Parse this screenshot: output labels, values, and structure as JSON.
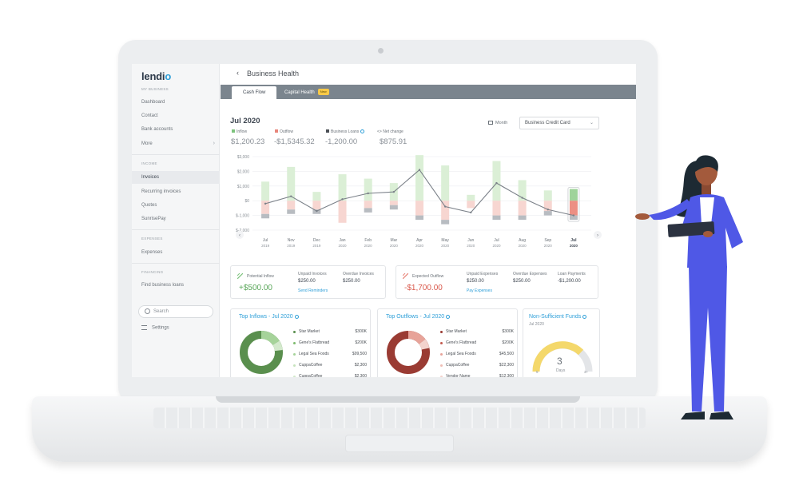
{
  "brand": {
    "logo_text": "lendi",
    "logo_dot": "o"
  },
  "sidebar": {
    "sections": [
      "MY BUSINESS",
      "INCOME",
      "EXPENSES",
      "FINANCING"
    ],
    "items": [
      {
        "label": "Dashboard"
      },
      {
        "label": "Contact"
      },
      {
        "label": "Bank accounts"
      },
      {
        "label": "More"
      },
      {
        "label": "Invoices"
      },
      {
        "label": "Recurring invoices"
      },
      {
        "label": "Quotes"
      },
      {
        "label": "SunrisePay"
      },
      {
        "label": "Expenses"
      },
      {
        "label": "Find business loans"
      }
    ],
    "search_label": "Search",
    "settings_label": "Settings"
  },
  "header": {
    "back_glyph": "‹",
    "title": "Business Health"
  },
  "tabs": [
    {
      "label": "Cash Flow"
    },
    {
      "label": "Capital Health",
      "badge": "New"
    }
  ],
  "summary": {
    "period": "Jul 2020",
    "legend": [
      {
        "label": "Inflow",
        "value": "$1,200.23",
        "color": "#7dc37d"
      },
      {
        "label": "Outflow",
        "value": "-$1,5345.32",
        "color": "#e8857a"
      },
      {
        "label": "Business Loans",
        "value": "-1,200.00",
        "color": "#4a4f55"
      },
      {
        "label": "Net change",
        "value": "$875.91",
        "glyph": "<>"
      }
    ],
    "month_toggle": "Month",
    "account_select": "Business Credit Card"
  },
  "chart_data": {
    "type": "bar",
    "y_ticks": [
      "$3,000",
      "$2,000",
      "$1,000",
      "$0",
      "$-1,000",
      "$-2,000"
    ],
    "ylim": [
      -2000,
      3000
    ],
    "categories": [
      "Jul 2019",
      "Nov 2019",
      "Dec 2019",
      "Jan 2020",
      "Feb 2020",
      "Mar 2020",
      "Apr 2020",
      "May 2020",
      "Jun 2020",
      "Jul 2020",
      "Aug 2020",
      "Sep 2020",
      "Jul 2020"
    ],
    "x_months": [
      "Jul",
      "Nov",
      "Dec",
      "Jan",
      "Feb",
      "Mar",
      "Apr",
      "May",
      "Jun",
      "Jul",
      "Aug",
      "Sep",
      "Jul"
    ],
    "x_years": [
      "2019",
      "2019",
      "2019",
      "2020",
      "2020",
      "2020",
      "2020",
      "2020",
      "2020",
      "2020",
      "2020",
      "2020",
      "2020"
    ],
    "series": [
      {
        "name": "Inflow",
        "values": [
          1300,
          2300,
          600,
          1800,
          1500,
          1200,
          3100,
          2400,
          400,
          2700,
          1400,
          700,
          800
        ]
      },
      {
        "name": "Outflow",
        "values": [
          -900,
          -600,
          -600,
          -1500,
          -500,
          -300,
          -1000,
          -1300,
          -500,
          -1000,
          -1000,
          -700,
          -1000
        ]
      },
      {
        "name": "Business Loans",
        "values": [
          -300,
          -300,
          -300,
          0,
          -300,
          -300,
          -300,
          -300,
          0,
          -300,
          -300,
          -300,
          -300
        ]
      },
      {
        "name": "Net change",
        "values": [
          -200,
          300,
          -700,
          100,
          500,
          600,
          2100,
          -400,
          -800,
          1200,
          200,
          -600,
          -1000
        ]
      }
    ]
  },
  "cards": {
    "potential_inflow": {
      "label": "Potential Inflow",
      "value": "+$500.00"
    },
    "unpaid_invoices": {
      "label": "Unpaid Invoices",
      "value": "$250.00",
      "link": "Send Reminders"
    },
    "overdue_invoices": {
      "label": "Overdue Invoices",
      "value": "$250.00"
    },
    "expected_outflow": {
      "label": "Expected Outflow",
      "value": "-$1,700.00"
    },
    "unpaid_expenses": {
      "label": "Unpaid Expenses",
      "value": "$250.00",
      "link": "Pay Expenses"
    },
    "overdue_expenses": {
      "label": "Overdue Expenses",
      "value": "$250.00"
    },
    "loan_payments": {
      "label": "Loan Payments",
      "value": "-$1,200.00"
    }
  },
  "top_inflows": {
    "title": "Top Inflows - Jul 2020",
    "rows": [
      {
        "name": "Star Market",
        "value": "$300K"
      },
      {
        "name": "Gene's Flatbread",
        "value": "$200K"
      },
      {
        "name": "Legal Sea Foods",
        "value": "$99,500"
      },
      {
        "name": "CuppaCoffee",
        "value": "$2,300"
      },
      {
        "name": "CuppaCoffee",
        "value": "$2,300"
      }
    ]
  },
  "top_outflows": {
    "title": "Top Outflows - Jul 2020",
    "rows": [
      {
        "name": "Star Market",
        "value": "$300K"
      },
      {
        "name": "Gene's Flatbread",
        "value": "$200K"
      },
      {
        "name": "Legal Sea Foods",
        "value": "$45,500"
      },
      {
        "name": "CuppaCoffee",
        "value": "$22,300"
      },
      {
        "name": "Vendor Name",
        "value": "$12,300"
      }
    ]
  },
  "nsf": {
    "title": "Non-Sufficient Funds",
    "sub": "Jul 2020",
    "days": "3",
    "days_label": "Days",
    "left_tick": "5",
    "right_tick": "3+"
  }
}
